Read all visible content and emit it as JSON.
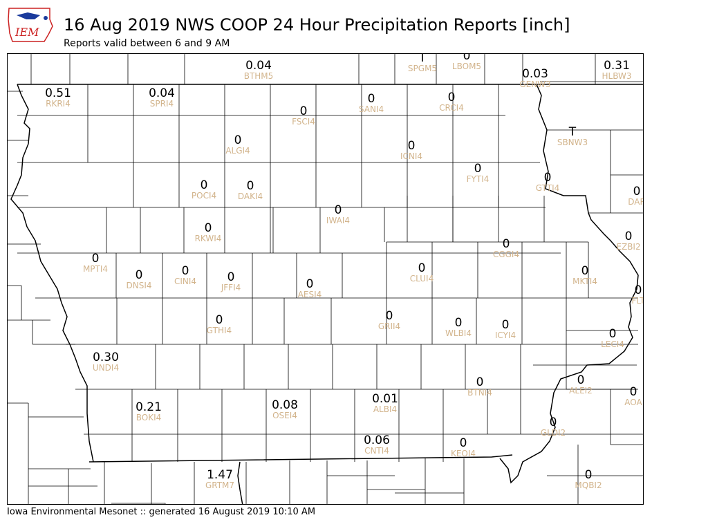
{
  "logo_text": "IEM",
  "title": "16 Aug 2019 NWS COOP 24 Hour Precipitation Reports [inch]",
  "subtitle": "Reports valid between 6 and 9 AM",
  "footer": "Iowa Environmental Mesonet :: generated 16 August 2019 10:10 AM",
  "stations": [
    {
      "id": "BTHM5",
      "value": "0.04"
    },
    {
      "id": "SPGM5",
      "value": "T"
    },
    {
      "id": "LBOM5",
      "value": "0"
    },
    {
      "id": "GENW3",
      "value": "0.03"
    },
    {
      "id": "HLBW3",
      "value": "0.31"
    },
    {
      "id": "RKRI4",
      "value": "0.51"
    },
    {
      "id": "SPRI4",
      "value": "0.04"
    },
    {
      "id": "SANI4",
      "value": "0"
    },
    {
      "id": "CRCI4",
      "value": "0"
    },
    {
      "id": "FSCI4",
      "value": "0"
    },
    {
      "id": "SBNW3",
      "value": "T"
    },
    {
      "id": "ALGI4",
      "value": "0"
    },
    {
      "id": "ICNI4",
      "value": "0"
    },
    {
      "id": "FYTI4",
      "value": "0"
    },
    {
      "id": "GTTI4",
      "value": "0"
    },
    {
      "id": "DAR",
      "value": "0"
    },
    {
      "id": "POCI4",
      "value": "0"
    },
    {
      "id": "DAKI4",
      "value": "0"
    },
    {
      "id": "IWAI4",
      "value": "0"
    },
    {
      "id": "RKWI4",
      "value": "0"
    },
    {
      "id": "EZBI2",
      "value": "0"
    },
    {
      "id": "CGGI4",
      "value": "0"
    },
    {
      "id": "MPTI4",
      "value": "0"
    },
    {
      "id": "DNSI4",
      "value": "0"
    },
    {
      "id": "CINI4",
      "value": "0"
    },
    {
      "id": "JFFI4",
      "value": "0"
    },
    {
      "id": "AESI4",
      "value": "0"
    },
    {
      "id": "CLUI4",
      "value": "0"
    },
    {
      "id": "MKTI4",
      "value": "0"
    },
    {
      "id": "FLT",
      "value": "0"
    },
    {
      "id": "GTHI4",
      "value": "0"
    },
    {
      "id": "GRII4",
      "value": "0"
    },
    {
      "id": "WLBI4",
      "value": "0"
    },
    {
      "id": "ICYI4",
      "value": "0"
    },
    {
      "id": "LECI4",
      "value": "0"
    },
    {
      "id": "UNDI4",
      "value": "0.30"
    },
    {
      "id": "BTNI4",
      "value": "0"
    },
    {
      "id": "ALEI2",
      "value": "0"
    },
    {
      "id": "AOA",
      "value": "0"
    },
    {
      "id": "BOKI4",
      "value": "0.21"
    },
    {
      "id": "OSEI4",
      "value": "0.08"
    },
    {
      "id": "ALBI4",
      "value": "0.01"
    },
    {
      "id": "GLDI2",
      "value": "0"
    },
    {
      "id": "CNTI4",
      "value": "0.06"
    },
    {
      "id": "KEOI4",
      "value": "0"
    },
    {
      "id": "GRTM7",
      "value": "1.47"
    },
    {
      "id": "MQBI2",
      "value": "0"
    }
  ]
}
